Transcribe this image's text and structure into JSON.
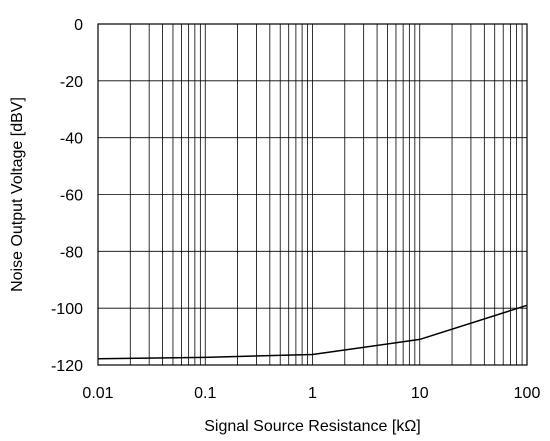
{
  "chart_data": {
    "type": "line",
    "xlabel": "Signal Source Resistance [kΩ]",
    "ylabel": "Noise Output Voltage [dBV]",
    "xscale": "log",
    "xlim": [
      0.01,
      100
    ],
    "ylim": [
      -120,
      0
    ],
    "grid": true,
    "x_ticks": [
      0.01,
      0.1,
      1,
      10,
      100
    ],
    "x_tick_labels": [
      "0.01",
      "0.1",
      "1",
      "10",
      "100"
    ],
    "y_ticks": [
      0,
      -20,
      -40,
      -60,
      -80,
      -100,
      -120
    ],
    "y_tick_labels": [
      "0",
      "-20",
      "-40",
      "-60",
      "-80",
      "-100",
      "-120"
    ],
    "series": [
      {
        "x": [
          0.01,
          0.1,
          1,
          10,
          100
        ],
        "y": [
          -117.8,
          -117.3,
          -116.3,
          -111,
          -99
        ]
      }
    ],
    "colors": {
      "line": "#000000",
      "grid": "#000000",
      "frame": "#000000"
    }
  }
}
